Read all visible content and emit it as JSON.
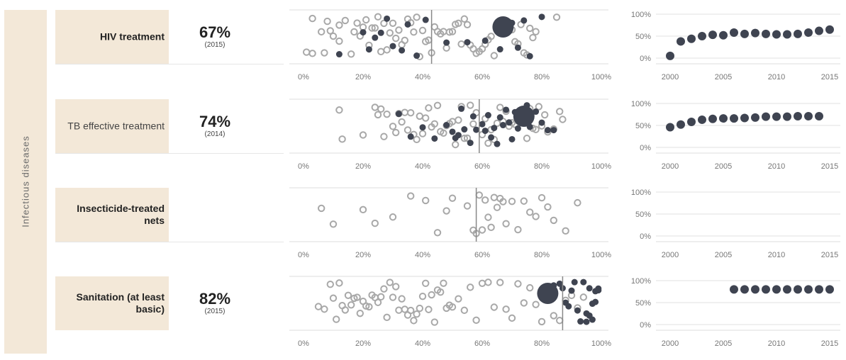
{
  "group": {
    "label": "Infectious diseases"
  },
  "colors": {
    "dark": "#3f4451",
    "grey": "#a8a8a8",
    "band": "#f3e8d8"
  },
  "rows": [
    {
      "label": "HIV treatment",
      "value": "67%",
      "year": "(2015)"
    },
    {
      "label": "TB effective treatment",
      "value": "74%",
      "year": "(2014)"
    },
    {
      "label": "Insecticide-treated nets",
      "value": "",
      "year": ""
    },
    {
      "label": "Sanitation (at least basic)",
      "value": "82%",
      "year": "(2015)"
    }
  ],
  "chart_data": [
    {
      "type": "scatter",
      "name": "HIV treatment country distribution",
      "xlim": [
        0,
        100
      ],
      "xticks": [
        "0%",
        "20%",
        "40%",
        "60%",
        "80%",
        "100%"
      ],
      "reference": 43,
      "highlight": 67,
      "grey": [
        1,
        3,
        3,
        6,
        7,
        8,
        9,
        10,
        12,
        12,
        14,
        16,
        17,
        18,
        19,
        20,
        21,
        22,
        23,
        24,
        25,
        26,
        27,
        28,
        29,
        30,
        31,
        32,
        33,
        34,
        35,
        36,
        37,
        38,
        39,
        40,
        41,
        42,
        43,
        44,
        45,
        46,
        47,
        48,
        49,
        50,
        51,
        52,
        53,
        54,
        55,
        56,
        57,
        58,
        59,
        60,
        61,
        62,
        63,
        64,
        65,
        66,
        69,
        70,
        71,
        72,
        73,
        74,
        75,
        76,
        77,
        78,
        85
      ],
      "dark": [
        12,
        20,
        22,
        24,
        26,
        28,
        30,
        33,
        35,
        38,
        41,
        48,
        55,
        61,
        66,
        70,
        72,
        74,
        76,
        80
      ]
    },
    {
      "type": "scatter",
      "name": "TB effective treatment country distribution",
      "xlim": [
        0,
        100
      ],
      "xticks": [
        "0%",
        "20%",
        "40%",
        "60%",
        "80%",
        "100%"
      ],
      "reference": 59,
      "highlight": 74,
      "grey": [
        12,
        13,
        20,
        24,
        25,
        26,
        27,
        28,
        30,
        31,
        32,
        33,
        34,
        35,
        36,
        37,
        38,
        39,
        40,
        41,
        42,
        43,
        44,
        45,
        46,
        47,
        48,
        49,
        50,
        51,
        52,
        53,
        54,
        55,
        56,
        57,
        58,
        60,
        61,
        62,
        63,
        64,
        65,
        66,
        67,
        68,
        69,
        70,
        71,
        72,
        73,
        75,
        76,
        77,
        78,
        79,
        80,
        81,
        82,
        84,
        86,
        87
      ],
      "dark": [
        32,
        36,
        40,
        44,
        48,
        50,
        51,
        52,
        53,
        54,
        56,
        57,
        58,
        60,
        61,
        62,
        63,
        64,
        65,
        66,
        67,
        68,
        69,
        70,
        71,
        72,
        75,
        76,
        78,
        80,
        82,
        84
      ]
    },
    {
      "type": "scatter",
      "name": "Insecticide-treated nets country distribution",
      "xlim": [
        0,
        100
      ],
      "xticks": [
        "0%",
        "20%",
        "40%",
        "60%",
        "80%",
        "100%"
      ],
      "reference": 58,
      "grey": [
        6,
        10,
        20,
        24,
        30,
        36,
        41,
        45,
        48,
        50,
        55,
        57,
        58,
        59,
        60,
        61,
        62,
        63,
        64,
        65,
        66,
        67,
        68,
        70,
        72,
        74,
        76,
        78,
        80,
        82,
        84,
        88,
        92
      ],
      "dark": []
    },
    {
      "type": "scatter",
      "name": "Sanitation country distribution",
      "xlim": [
        0,
        100
      ],
      "xticks": [
        "0%",
        "20%",
        "40%",
        "60%",
        "80%",
        "100%"
      ],
      "reference": 87,
      "highlight": 82,
      "grey": [
        5,
        7,
        9,
        10,
        11,
        12,
        13,
        14,
        15,
        16,
        17,
        18,
        19,
        20,
        21,
        22,
        23,
        24,
        25,
        26,
        27,
        28,
        29,
        30,
        31,
        32,
        33,
        34,
        35,
        36,
        37,
        38,
        39,
        40,
        41,
        42,
        43,
        44,
        45,
        46,
        47,
        48,
        49,
        50,
        52,
        54,
        56,
        58,
        60,
        62,
        64,
        66,
        68,
        70,
        72,
        74,
        76,
        78,
        80,
        84,
        86,
        88,
        90,
        92,
        94
      ],
      "dark": [
        84,
        86,
        87,
        88,
        89,
        90,
        91,
        92,
        93,
        94,
        95,
        96,
        97,
        98,
        99,
        99,
        98,
        97,
        96,
        95
      ]
    },
    {
      "type": "scatter",
      "name": "HIV treatment trend",
      "yticks": [
        "100%",
        "50%",
        "0%"
      ],
      "ylim": [
        0,
        100
      ],
      "xticks": [
        "2000",
        "2005",
        "2010",
        "2015"
      ],
      "xlim": [
        1999,
        2016
      ],
      "x": [
        2000,
        2001,
        2002,
        2003,
        2004,
        2005,
        2006,
        2007,
        2008,
        2009,
        2010,
        2011,
        2012,
        2013,
        2014,
        2015
      ],
      "y": [
        5,
        38,
        44,
        50,
        53,
        52,
        58,
        55,
        57,
        55,
        54,
        54,
        55,
        58,
        62,
        65
      ]
    },
    {
      "type": "scatter",
      "name": "TB effective treatment trend",
      "yticks": [
        "100%",
        "50%",
        "0%"
      ],
      "ylim": [
        0,
        100
      ],
      "xticks": [
        "2000",
        "2005",
        "2010",
        "2015"
      ],
      "xlim": [
        1999,
        2016
      ],
      "x": [
        2000,
        2001,
        2002,
        2003,
        2004,
        2005,
        2006,
        2007,
        2008,
        2009,
        2010,
        2011,
        2012,
        2013,
        2014
      ],
      "y": [
        46,
        52,
        58,
        63,
        65,
        66,
        66,
        67,
        68,
        70,
        70,
        70,
        71,
        71,
        71
      ]
    },
    {
      "type": "scatter",
      "name": "Insecticide-treated nets trend",
      "yticks": [
        "100%",
        "50%",
        "0%"
      ],
      "ylim": [
        0,
        100
      ],
      "xticks": [
        "2000",
        "2005",
        "2010",
        "2015"
      ],
      "xlim": [
        1999,
        2016
      ],
      "x": [],
      "y": []
    },
    {
      "type": "scatter",
      "name": "Sanitation trend",
      "yticks": [
        "100%",
        "50%",
        "0%"
      ],
      "ylim": [
        0,
        100
      ],
      "xticks": [
        "2000",
        "2005",
        "2010",
        "2015"
      ],
      "xlim": [
        1999,
        2016
      ],
      "x": [
        2006,
        2007,
        2008,
        2009,
        2010,
        2011,
        2012,
        2013,
        2014,
        2015
      ],
      "y": [
        80,
        80,
        80,
        80,
        80,
        80,
        80,
        80,
        80,
        80
      ]
    }
  ]
}
